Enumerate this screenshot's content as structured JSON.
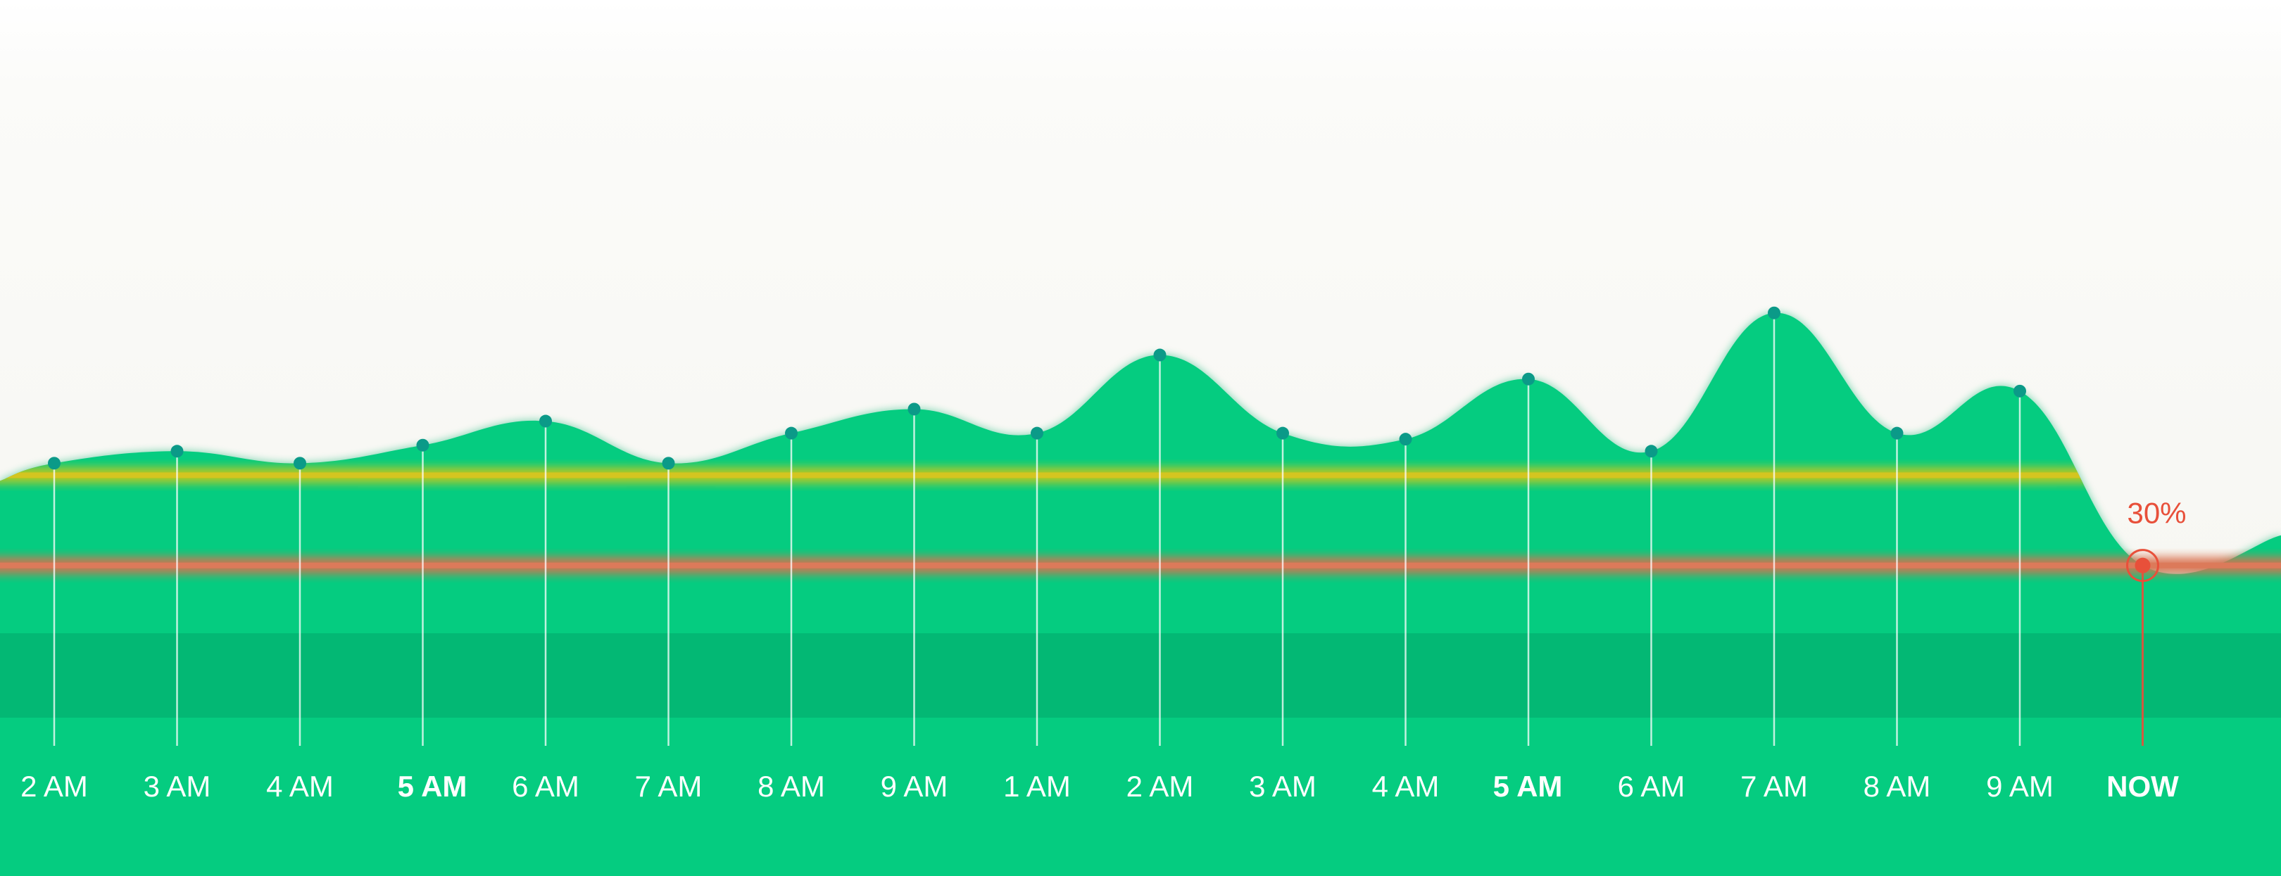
{
  "colors": {
    "background_top": "#ffffff",
    "background_mid": "#f8f8f4",
    "area_fill": "#05cc80",
    "area_glow": "#04b974",
    "band_dark": "#00834f",
    "band_mid": "#009a5d",
    "yellow_line": "#c8c81e",
    "red_line": "#d97150",
    "dot": "#0b9a88",
    "now_accent": "#e8503a"
  },
  "chart_data": {
    "type": "area",
    "title": "",
    "xlabel": "",
    "ylabel": "",
    "categories": [
      "2 AM",
      "3 AM",
      "4 AM",
      "5 AM",
      "6 AM",
      "7 AM",
      "8 AM",
      "9 AM",
      "1 AM",
      "2 AM",
      "3 AM",
      "4 AM",
      "5 AM",
      "6 AM",
      "7 AM",
      "8 AM",
      "9 AM",
      "NOW"
    ],
    "bold_categories": [
      3,
      12,
      17
    ],
    "values": [
      47,
      49,
      47,
      50,
      54,
      47,
      52,
      56,
      52,
      65,
      52,
      51,
      61,
      49,
      72,
      52,
      59,
      30
    ],
    "yellow_threshold": 45,
    "red_threshold": 30,
    "now_label": "30%",
    "ylim": [
      0,
      110
    ],
    "grid": false,
    "legend": "none"
  }
}
